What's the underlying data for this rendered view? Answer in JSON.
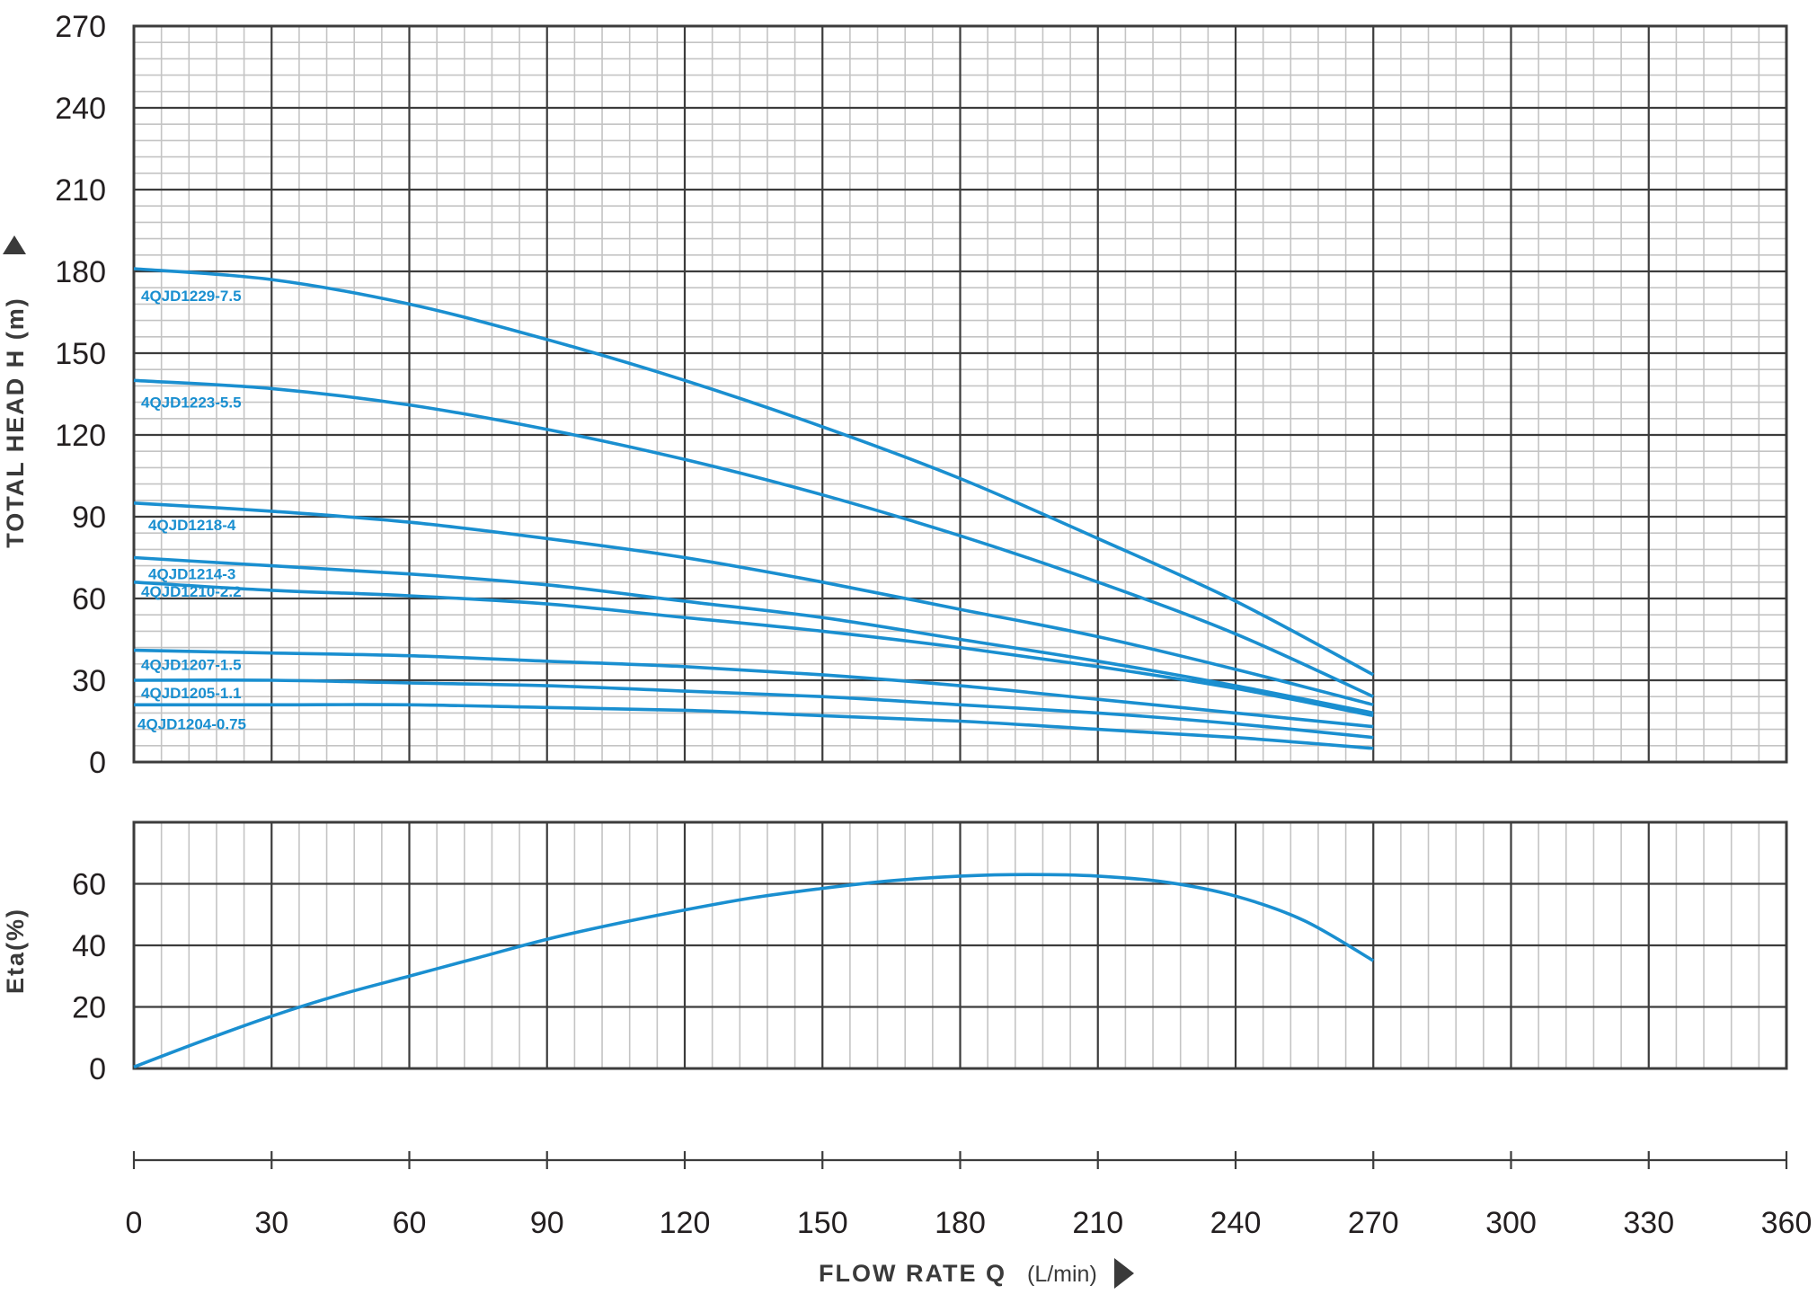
{
  "colors": {
    "curve": "#1a8fd0",
    "grid_major": "#3c3c3c",
    "grid_minor": "#c4c4c4",
    "text": "#231f20"
  },
  "chart_data": [
    {
      "type": "line",
      "title": "",
      "xlabel": "FLOW RATE Q",
      "xunit": "(L/min)",
      "ylabel": "TOTAL HEAD H (m)",
      "xlim": [
        0,
        360
      ],
      "ylim": [
        0,
        270
      ],
      "x_ticks": [
        "0",
        "30",
        "60",
        "90",
        "120",
        "150",
        "180",
        "210",
        "240",
        "270",
        "300",
        "330",
        "360"
      ],
      "y_ticks": [
        "0",
        "30",
        "60",
        "90",
        "120",
        "150",
        "180",
        "210",
        "240",
        "270"
      ],
      "grid": true,
      "series": [
        {
          "name": "4QJD1229-7.5",
          "x": [
            0,
            30,
            60,
            90,
            120,
            150,
            180,
            210,
            240,
            270
          ],
          "y": [
            181,
            177,
            168,
            155,
            140,
            123,
            104,
            82,
            59,
            32
          ]
        },
        {
          "name": "4QJD1223-5.5",
          "x": [
            0,
            30,
            60,
            90,
            120,
            150,
            180,
            210,
            240,
            270
          ],
          "y": [
            140,
            137,
            131,
            122,
            111,
            98,
            83,
            66,
            47,
            24
          ]
        },
        {
          "name": "4QJD1218-4",
          "x": [
            0,
            30,
            60,
            90,
            120,
            150,
            180,
            210,
            240,
            270
          ],
          "y": [
            95,
            92,
            88,
            82,
            75,
            66,
            56,
            46,
            34,
            21
          ]
        },
        {
          "name": "4QJD1214-3",
          "x": [
            0,
            30,
            60,
            90,
            120,
            150,
            180,
            210,
            240,
            270
          ],
          "y": [
            75,
            72,
            69,
            65,
            59,
            53,
            45,
            37,
            28,
            18
          ]
        },
        {
          "name": "4QJD1210-2.2",
          "x": [
            0,
            30,
            60,
            90,
            120,
            150,
            180,
            210,
            240,
            270
          ],
          "y": [
            66,
            63,
            61,
            58,
            53,
            48,
            42,
            35,
            27,
            17
          ]
        },
        {
          "name": "4QJD1207-1.5",
          "x": [
            0,
            30,
            60,
            90,
            120,
            150,
            180,
            210,
            240,
            270
          ],
          "y": [
            41,
            40,
            39,
            37,
            35,
            32,
            28,
            23,
            18,
            13
          ]
        },
        {
          "name": "4QJD1205-1.1",
          "x": [
            0,
            30,
            60,
            90,
            120,
            150,
            180,
            210,
            240,
            270
          ],
          "y": [
            30,
            30,
            29,
            28,
            26,
            24,
            21,
            18,
            14,
            9
          ]
        },
        {
          "name": "4QJD1204-0.75",
          "x": [
            0,
            30,
            60,
            90,
            120,
            150,
            180,
            210,
            240,
            270
          ],
          "y": [
            21,
            21,
            21,
            20,
            19,
            17,
            15,
            12,
            9,
            5
          ]
        }
      ]
    },
    {
      "type": "line",
      "title": "",
      "xlabel": "FLOW RATE Q",
      "xunit": "(L/min)",
      "ylabel": "Eta(%)",
      "xlim": [
        0,
        360
      ],
      "ylim": [
        0,
        80
      ],
      "x_ticks": [
        "0",
        "30",
        "60",
        "90",
        "120",
        "150",
        "180",
        "210",
        "240",
        "270",
        "300",
        "330",
        "360"
      ],
      "y_ticks": [
        "0",
        "20",
        "40",
        "60"
      ],
      "grid": true,
      "series": [
        {
          "name": "",
          "x": [
            0,
            15,
            30,
            45,
            60,
            75,
            90,
            105,
            120,
            135,
            150,
            165,
            180,
            195,
            210,
            225,
            240,
            255,
            270
          ],
          "y": [
            0.5,
            9,
            17,
            24,
            30,
            36,
            42,
            47,
            51.5,
            55.5,
            58.5,
            61,
            62.5,
            63,
            62.5,
            60.5,
            56,
            48,
            35
          ]
        }
      ]
    }
  ]
}
